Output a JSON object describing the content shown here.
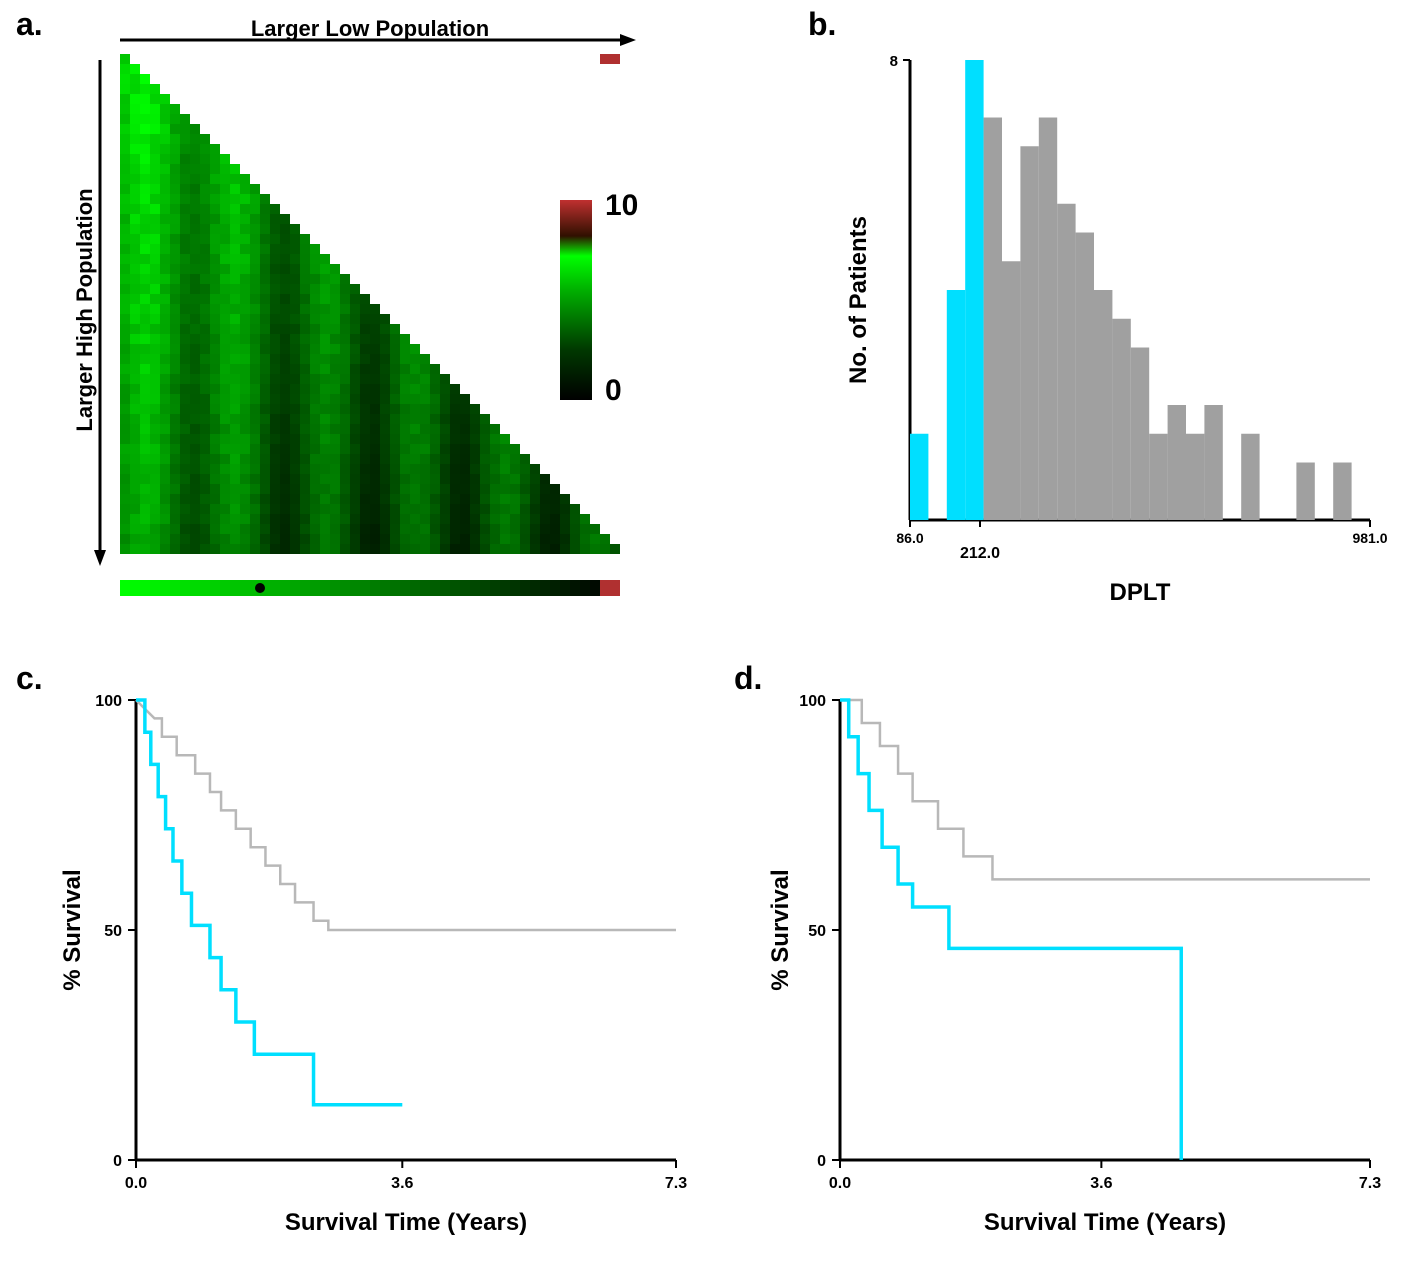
{
  "panel_labels": {
    "a": "a.",
    "b": "b.",
    "c": "c.",
    "d": "d."
  },
  "panel_a": {
    "x_arrow_label": "Larger Low Population",
    "y_arrow_label": "Larger High Population",
    "colorbar": {
      "max": "10",
      "min": "0"
    },
    "colors": {
      "heat_low": "#000000",
      "heat_mid": "#005500",
      "heat_high": "#00ff00",
      "accent_red": "#b03030"
    },
    "label_fontsize": 22,
    "colorbar_fontsize": 28
  },
  "panel_b": {
    "type": "histogram",
    "xlabel": "DPLT",
    "ylabel": "No. of Patients",
    "ymax_tick": "8",
    "xmin_tick": "86.0",
    "xthreshold_tick": "212.0",
    "xmax_tick": "981.0",
    "bars": [
      {
        "x": 0,
        "h": 1.5,
        "color": "#00dfff"
      },
      {
        "x": 1,
        "h": 0,
        "color": "#00dfff"
      },
      {
        "x": 2,
        "h": 4,
        "color": "#00dfff"
      },
      {
        "x": 3,
        "h": 8,
        "color": "#00dfff"
      },
      {
        "x": 4,
        "h": 7,
        "color": "#a0a0a0"
      },
      {
        "x": 5,
        "h": 4.5,
        "color": "#a0a0a0"
      },
      {
        "x": 6,
        "h": 6.5,
        "color": "#a0a0a0"
      },
      {
        "x": 7,
        "h": 7,
        "color": "#a0a0a0"
      },
      {
        "x": 8,
        "h": 5.5,
        "color": "#a0a0a0"
      },
      {
        "x": 9,
        "h": 5,
        "color": "#a0a0a0"
      },
      {
        "x": 10,
        "h": 4,
        "color": "#a0a0a0"
      },
      {
        "x": 11,
        "h": 3.5,
        "color": "#a0a0a0"
      },
      {
        "x": 12,
        "h": 3,
        "color": "#a0a0a0"
      },
      {
        "x": 13,
        "h": 1.5,
        "color": "#a0a0a0"
      },
      {
        "x": 14,
        "h": 2,
        "color": "#a0a0a0"
      },
      {
        "x": 15,
        "h": 1.5,
        "color": "#a0a0a0"
      },
      {
        "x": 16,
        "h": 2,
        "color": "#a0a0a0"
      },
      {
        "x": 17,
        "h": 0,
        "color": "#a0a0a0"
      },
      {
        "x": 18,
        "h": 1.5,
        "color": "#a0a0a0"
      },
      {
        "x": 19,
        "h": 0,
        "color": "#a0a0a0"
      },
      {
        "x": 20,
        "h": 0,
        "color": "#a0a0a0"
      },
      {
        "x": 21,
        "h": 1,
        "color": "#a0a0a0"
      },
      {
        "x": 22,
        "h": 0,
        "color": "#a0a0a0"
      },
      {
        "x": 23,
        "h": 1,
        "color": "#a0a0a0"
      },
      {
        "x": 24,
        "h": 0,
        "color": "#a0a0a0"
      }
    ],
    "ylim": [
      0,
      8
    ],
    "bar_width": 1.0,
    "label_fontsize": 22,
    "tick_fontsize": 14,
    "colors": {
      "cyan": "#00dfff",
      "grey": "#a0a0a0",
      "axis": "#000000"
    }
  },
  "panel_c": {
    "type": "survival",
    "xlabel": "Survival Time (Years)",
    "ylabel": "% Survival",
    "xticks": [
      "0.0",
      "3.6",
      "7.3"
    ],
    "yticks": [
      "0",
      "50",
      "100"
    ],
    "xlim": [
      0,
      7.3
    ],
    "ylim": [
      0,
      100
    ],
    "label_fontsize": 22,
    "tick_fontsize": 16,
    "line_width_grey": 2,
    "line_width_cyan": 3,
    "colors": {
      "grey": "#b8b8b8",
      "cyan": "#00dfff",
      "axis": "#000000"
    },
    "grey_series": [
      [
        0.0,
        100
      ],
      [
        0.25,
        96
      ],
      [
        0.35,
        96
      ],
      [
        0.35,
        92
      ],
      [
        0.55,
        92
      ],
      [
        0.55,
        88
      ],
      [
        0.8,
        88
      ],
      [
        0.8,
        84
      ],
      [
        1.0,
        84
      ],
      [
        1.0,
        80
      ],
      [
        1.15,
        80
      ],
      [
        1.15,
        76
      ],
      [
        1.35,
        76
      ],
      [
        1.35,
        72
      ],
      [
        1.55,
        72
      ],
      [
        1.55,
        68
      ],
      [
        1.75,
        68
      ],
      [
        1.75,
        64
      ],
      [
        1.95,
        64
      ],
      [
        1.95,
        60
      ],
      [
        2.15,
        60
      ],
      [
        2.15,
        56
      ],
      [
        2.4,
        56
      ],
      [
        2.4,
        52
      ],
      [
        2.6,
        52
      ],
      [
        2.6,
        50
      ],
      [
        7.3,
        50
      ]
    ],
    "cyan_series": [
      [
        0.0,
        100
      ],
      [
        0.12,
        100
      ],
      [
        0.12,
        93
      ],
      [
        0.2,
        93
      ],
      [
        0.2,
        86
      ],
      [
        0.3,
        86
      ],
      [
        0.3,
        79
      ],
      [
        0.4,
        79
      ],
      [
        0.4,
        72
      ],
      [
        0.5,
        72
      ],
      [
        0.5,
        65
      ],
      [
        0.62,
        65
      ],
      [
        0.62,
        58
      ],
      [
        0.75,
        58
      ],
      [
        0.75,
        51
      ],
      [
        1.0,
        51
      ],
      [
        1.0,
        44
      ],
      [
        1.15,
        44
      ],
      [
        1.15,
        37
      ],
      [
        1.35,
        37
      ],
      [
        1.35,
        30
      ],
      [
        1.6,
        30
      ],
      [
        1.6,
        23
      ],
      [
        2.4,
        23
      ],
      [
        2.4,
        12
      ],
      [
        3.6,
        12
      ]
    ]
  },
  "panel_d": {
    "type": "survival",
    "xlabel": "Survival Time (Years)",
    "ylabel": "% Survival",
    "xticks": [
      "0.0",
      "3.6",
      "7.3"
    ],
    "yticks": [
      "0",
      "50",
      "100"
    ],
    "xlim": [
      0,
      7.3
    ],
    "ylim": [
      0,
      100
    ],
    "label_fontsize": 22,
    "tick_fontsize": 16,
    "line_width_grey": 2,
    "line_width_cyan": 3,
    "colors": {
      "grey": "#b8b8b8",
      "cyan": "#00dfff",
      "axis": "#000000"
    },
    "grey_series": [
      [
        0.0,
        100
      ],
      [
        0.3,
        100
      ],
      [
        0.3,
        95
      ],
      [
        0.55,
        95
      ],
      [
        0.55,
        90
      ],
      [
        0.8,
        90
      ],
      [
        0.8,
        84
      ],
      [
        1.0,
        84
      ],
      [
        1.0,
        78
      ],
      [
        1.35,
        78
      ],
      [
        1.35,
        72
      ],
      [
        1.7,
        72
      ],
      [
        1.7,
        66
      ],
      [
        2.1,
        66
      ],
      [
        2.1,
        61
      ],
      [
        7.3,
        61
      ]
    ],
    "cyan_series": [
      [
        0.0,
        100
      ],
      [
        0.12,
        100
      ],
      [
        0.12,
        92
      ],
      [
        0.25,
        92
      ],
      [
        0.25,
        84
      ],
      [
        0.4,
        84
      ],
      [
        0.4,
        76
      ],
      [
        0.58,
        76
      ],
      [
        0.58,
        68
      ],
      [
        0.8,
        68
      ],
      [
        0.8,
        60
      ],
      [
        1.0,
        60
      ],
      [
        1.0,
        55
      ],
      [
        1.5,
        55
      ],
      [
        1.5,
        46
      ],
      [
        4.7,
        46
      ],
      [
        4.7,
        0
      ]
    ]
  }
}
